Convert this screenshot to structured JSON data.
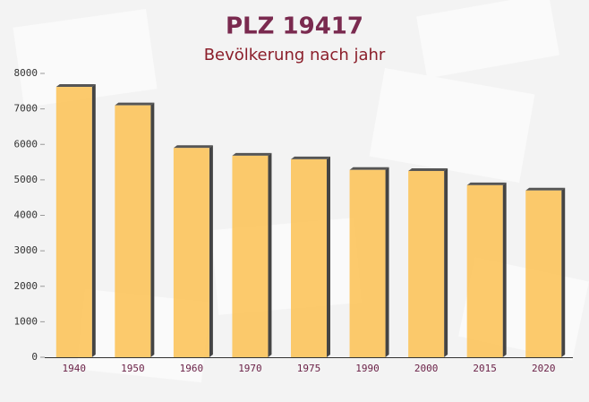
{
  "chart_data": {
    "type": "bar",
    "title": "PLZ 19417",
    "subtitle": "Bevölkerung nach jahr",
    "categories": [
      "1940",
      "1950",
      "1960",
      "1970",
      "1975",
      "1990",
      "2000",
      "2015",
      "2020"
    ],
    "values": [
      7620,
      7100,
      5900,
      5680,
      5580,
      5280,
      5250,
      4850,
      4700
    ],
    "color": "#fcc45c",
    "ylim": [
      0,
      8000
    ],
    "yticks": [
      0,
      1000,
      2000,
      3000,
      4000,
      5000,
      6000,
      7000,
      8000
    ],
    "grid": false
  }
}
